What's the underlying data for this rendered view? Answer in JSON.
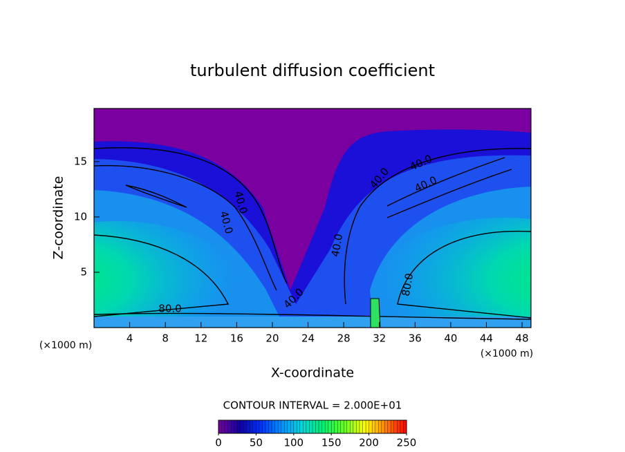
{
  "chart_data": {
    "type": "contour",
    "title": "turbulent diffusion coefficient",
    "x_label": "X-coordinate",
    "y_label": "Z-coordinate",
    "x_unit": "(×1000 m)",
    "xlim": [
      0,
      49
    ],
    "xticks": [
      4,
      8,
      12,
      16,
      20,
      24,
      28,
      32,
      36,
      40,
      44,
      48
    ],
    "ylim": [
      0,
      19.8
    ],
    "yticks": [
      5,
      10,
      15
    ],
    "contour_labels": [
      {
        "value": 80,
        "label": "80.0"
      },
      {
        "value": 80,
        "label": "80.0"
      },
      {
        "value": 40,
        "label": "40.0"
      },
      {
        "value": 40,
        "label": "40.0"
      },
      {
        "value": 40,
        "label": "40.0"
      },
      {
        "value": 40,
        "label": "40.0"
      },
      {
        "value": 40,
        "label": "40.0"
      },
      {
        "value": 40,
        "label": "40.0"
      },
      {
        "value": 40,
        "label": "40.0"
      }
    ],
    "contour_interval_label": "CONTOUR INTERVAL = 2.000E+01",
    "colorbar_lim": [
      0,
      250
    ],
    "colorbar_ticks": [
      0,
      50,
      100,
      150,
      200,
      250
    ],
    "colormap": [
      "#7a00a0",
      "#1000a0",
      "#0030ff",
      "#0090ff",
      "#00d8e0",
      "#00f070",
      "#60ff20",
      "#ffff00",
      "#ff8000",
      "#ff0000"
    ]
  }
}
